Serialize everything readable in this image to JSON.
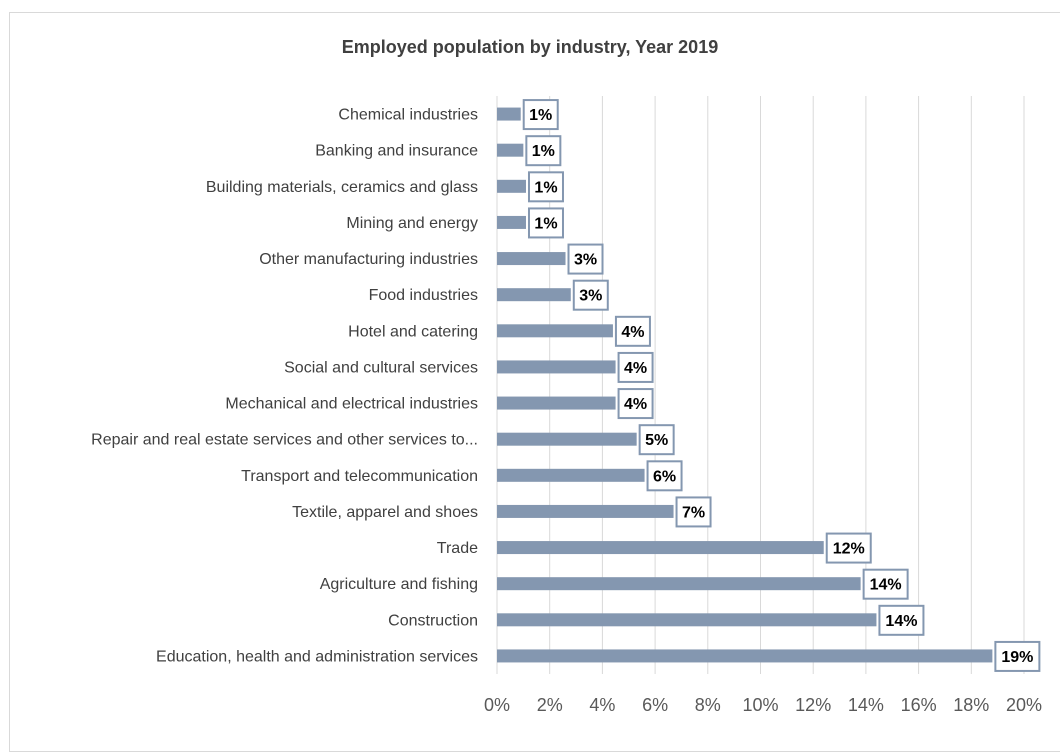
{
  "chart_data": {
    "type": "bar",
    "orientation": "horizontal",
    "title": "Employed population by industry, Year 2019",
    "xlabel": "",
    "ylabel": "",
    "categories": [
      "Chemical industries",
      "Banking and insurance",
      "Building materials, ceramics and glass",
      "Mining and energy",
      "Other manufacturing industries",
      "Food industries",
      "Hotel and catering",
      "Social and cultural services",
      "Mechanical and electrical industries",
      "Repair and real estate services and other services to...",
      "Transport and telecommunication",
      "Textile, apparel and shoes",
      "Trade",
      "Agriculture and fishing",
      "Construction",
      "Education, health and administration services"
    ],
    "values": [
      0.9,
      1.0,
      1.1,
      1.1,
      2.6,
      2.8,
      4.4,
      4.5,
      4.5,
      5.3,
      5.6,
      6.7,
      12.4,
      13.8,
      14.4,
      18.8
    ],
    "data_labels": [
      "1%",
      "1%",
      "1%",
      "1%",
      "3%",
      "3%",
      "4%",
      "4%",
      "4%",
      "5%",
      "6%",
      "7%",
      "12%",
      "14%",
      "14%",
      "19%"
    ],
    "xlim": [
      0,
      20
    ],
    "xticks": [
      "0%",
      "2%",
      "4%",
      "6%",
      "8%",
      "10%",
      "12%",
      "14%",
      "16%",
      "18%",
      "20%"
    ],
    "grid": "vertical",
    "legend": "none",
    "colors": {
      "bar": "#8497b0",
      "label_border": "#8497b0",
      "grid": "#d9d9d9"
    }
  }
}
